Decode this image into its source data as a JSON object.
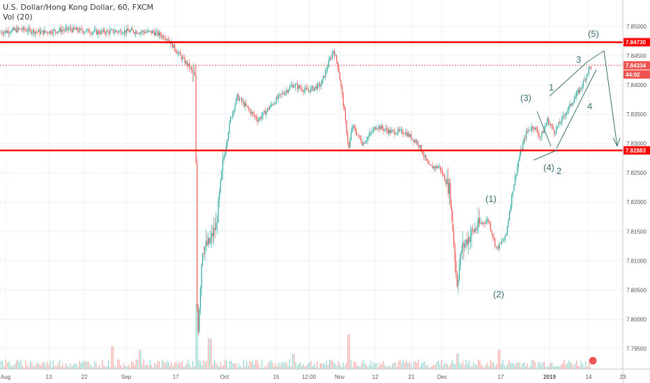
{
  "header": {
    "title": "U.S. Dollar/Hong Kong Dollar, 60, FXCM",
    "indicator": "Vol (20)"
  },
  "colors": {
    "up": "#26a69a",
    "down": "#ef5350",
    "hline": "#ff0000",
    "wave": "#3a6e6e",
    "grid": "#eef0f3"
  },
  "chart_data": {
    "type": "candlestick",
    "ylim": [
      7.7915,
      7.8545
    ],
    "y_ticks": [
      "7.85000",
      "7.84500",
      "7.84000",
      "7.83500",
      "7.83000",
      "7.82500",
      "7.82000",
      "7.81500",
      "7.81000",
      "7.80500",
      "7.80000",
      "7.79500"
    ],
    "x_ticks": [
      "Aug",
      "13",
      "22",
      "Sep",
      "17",
      "Oct",
      "15",
      "12:00",
      "Nov",
      "12",
      "21",
      "Dec",
      "17",
      "2019",
      "14",
      "23"
    ],
    "price_tags": [
      {
        "value": "7.84730",
        "color": "#ff0000"
      },
      {
        "value": "7.84334",
        "color": "#ef5350"
      },
      {
        "value": "44:02",
        "color": "#ef5350"
      },
      {
        "value": "7.82883",
        "color": "#ff0000"
      }
    ],
    "horizontal_lines": [
      7.8473,
      7.82883
    ],
    "dotted_line": 7.84334,
    "price_path": [
      [
        0,
        7.849
      ],
      [
        30,
        7.8495
      ],
      [
        60,
        7.849
      ],
      [
        100,
        7.8495
      ],
      [
        140,
        7.849
      ],
      [
        180,
        7.8492
      ],
      [
        220,
        7.849
      ],
      [
        240,
        7.848
      ],
      [
        258,
        7.845
      ],
      [
        272,
        7.843
      ],
      [
        280,
        7.841
      ],
      [
        283,
        7.796
      ],
      [
        290,
        7.812
      ],
      [
        300,
        7.813
      ],
      [
        310,
        7.816
      ],
      [
        320,
        7.827
      ],
      [
        330,
        7.834
      ],
      [
        340,
        7.838
      ],
      [
        355,
        7.836
      ],
      [
        370,
        7.834
      ],
      [
        385,
        7.836
      ],
      [
        400,
        7.838
      ],
      [
        420,
        7.84
      ],
      [
        440,
        7.839
      ],
      [
        460,
        7.84
      ],
      [
        478,
        7.846
      ],
      [
        485,
        7.843
      ],
      [
        492,
        7.837
      ],
      [
        500,
        7.829
      ],
      [
        505,
        7.833
      ],
      [
        520,
        7.83
      ],
      [
        540,
        7.833
      ],
      [
        560,
        7.832
      ],
      [
        580,
        7.832
      ],
      [
        600,
        7.83
      ],
      [
        615,
        7.826
      ],
      [
        630,
        7.826
      ],
      [
        645,
        7.822
      ],
      [
        655,
        7.806
      ],
      [
        662,
        7.812
      ],
      [
        672,
        7.814
      ],
      [
        685,
        7.816
      ],
      [
        700,
        7.817
      ],
      [
        712,
        7.812
      ],
      [
        725,
        7.814
      ],
      [
        735,
        7.822
      ],
      [
        745,
        7.828
      ],
      [
        755,
        7.832
      ],
      [
        765,
        7.833
      ],
      [
        775,
        7.831
      ],
      [
        785,
        7.834
      ],
      [
        795,
        7.832
      ],
      [
        805,
        7.834
      ],
      [
        815,
        7.836
      ],
      [
        825,
        7.838
      ],
      [
        835,
        7.84
      ],
      [
        845,
        7.843
      ]
    ],
    "wave_labels": [
      "(5)",
      "3",
      "1",
      "(3)",
      "4",
      "(4)",
      "2",
      "(1)",
      "(2)"
    ],
    "volume_spikes": [
      [
        160,
        0.3
      ],
      [
        200,
        0.25
      ],
      [
        282,
        0.85
      ],
      [
        300,
        0.4
      ],
      [
        420,
        0.2
      ],
      [
        500,
        0.45
      ],
      [
        655,
        0.2
      ],
      [
        715,
        0.25
      ]
    ]
  }
}
